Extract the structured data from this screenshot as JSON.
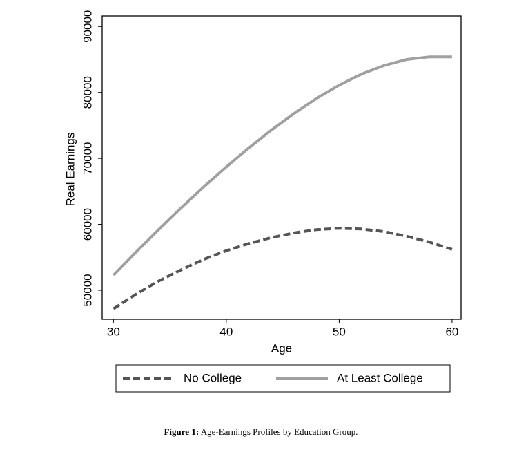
{
  "chart_data": {
    "type": "line",
    "x_label": "Age",
    "y_label": "Real Earnings",
    "x": [
      30,
      32,
      34,
      36,
      38,
      40,
      42,
      44,
      46,
      48,
      50,
      52,
      54,
      56,
      58,
      60
    ],
    "series": [
      {
        "name": "No College",
        "color": "#555555",
        "dashed": true,
        "values": [
          47200,
          49400,
          51400,
          53100,
          54700,
          56000,
          57100,
          58000,
          58700,
          59200,
          59400,
          59300,
          58900,
          58200,
          57300,
          56200
        ]
      },
      {
        "name": "At Least College",
        "color": "#a0a0a0",
        "dashed": false,
        "values": [
          52300,
          55800,
          59200,
          62500,
          65700,
          68700,
          71600,
          74300,
          76800,
          79100,
          81100,
          82800,
          84100,
          85000,
          85400,
          85400
        ]
      }
    ],
    "xlim": [
      29,
      60.8
    ],
    "ylim": [
      45600,
      91600
    ],
    "xticks": [
      30,
      40,
      50,
      60
    ],
    "yticks": [
      50000,
      60000,
      70000,
      80000,
      90000
    ],
    "grid": false,
    "legend": "bottom"
  },
  "figure_caption": {
    "label": "Figure 1:",
    "text": "Age-Earnings Profiles by Education Group."
  }
}
